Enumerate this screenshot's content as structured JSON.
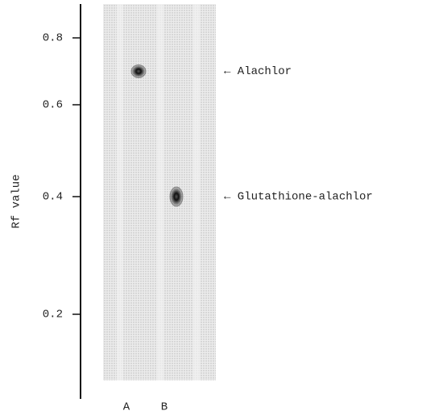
{
  "chart_data": {
    "type": "tlc",
    "ylabel": "Rf value",
    "categories": [
      "A",
      "B"
    ],
    "values": [
      0.7,
      0.4
    ],
    "annotations": [
      "← Alachlor",
      "← Glutathione-alachlor"
    ],
    "ylim": [
      0.05,
      0.9
    ],
    "yticks": [
      0.2,
      0.4,
      0.6,
      0.8
    ],
    "color": "#1a1a1a"
  }
}
